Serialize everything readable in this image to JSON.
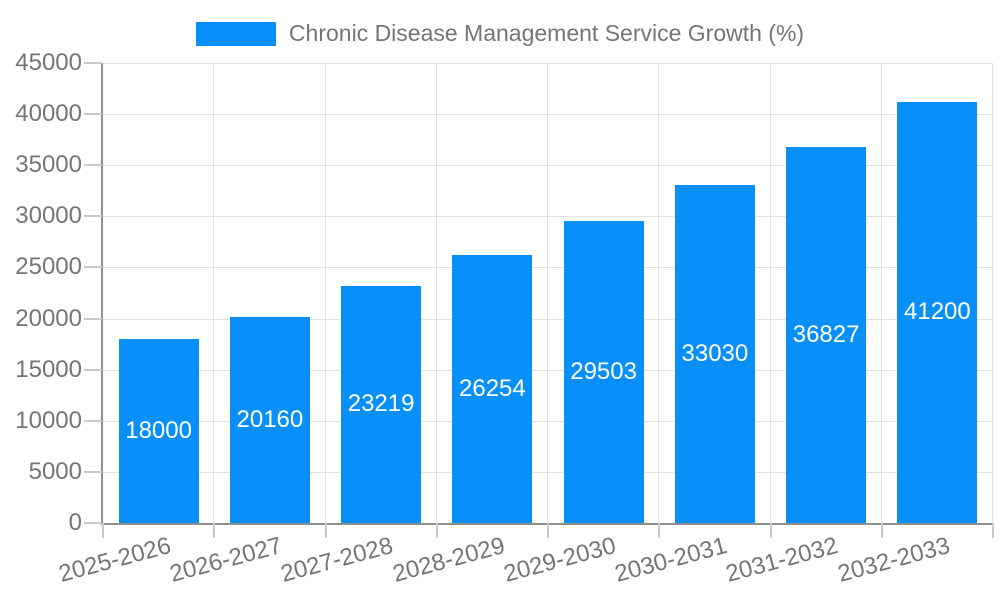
{
  "chart_data": {
    "type": "bar",
    "title": "Chronic Disease Management Service Growth (%)",
    "categories": [
      "2025-2026",
      "2026-2027",
      "2027-2028",
      "2028-2029",
      "2029-2030",
      "2030-2031",
      "2031-2032",
      "2032-2033"
    ],
    "values": [
      18000,
      20160,
      23219,
      26254,
      29503,
      33030,
      36827,
      41200
    ],
    "value_labels": [
      "18000",
      "20160",
      "23219",
      "26254",
      "29503",
      "33030",
      "36827",
      "41200"
    ],
    "xlabel": "",
    "ylabel": "",
    "ylim": [
      0,
      45000
    ],
    "ytick_interval": 5000,
    "ytick_labels": [
      "0",
      "5000",
      "10000",
      "15000",
      "20000",
      "25000",
      "30000",
      "35000",
      "40000",
      "45000"
    ],
    "x_label_rotation_deg": -15,
    "grid": true,
    "legend": {
      "position": "top-center",
      "label": "Chronic Disease Management Service Growth (%)"
    },
    "colors": {
      "bar": "#0990f8",
      "value_label": "#ffffff",
      "axis_text": "#757575",
      "axis_line": "#8f8f8f",
      "gridline": "#e2e2e2",
      "tick": "#c9c9c9",
      "background": "#ffffff"
    }
  }
}
